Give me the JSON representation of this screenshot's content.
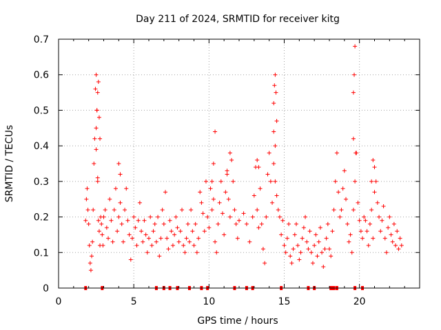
{
  "chart_data": {
    "type": "scatter",
    "title": "Day 211 of 2024, SRMTID for receiver kitg",
    "xlabel": "GPS time / hours",
    "ylabel": "SRMTID / TECUs",
    "xlim": [
      0,
      24
    ],
    "ylim": [
      0,
      0.7
    ],
    "xticks": [
      0,
      5,
      10,
      15,
      20
    ],
    "yticks": [
      0,
      0.1,
      0.2,
      0.3,
      0.4,
      0.5,
      0.6,
      0.7
    ],
    "xtick_labels": [
      "0",
      "5",
      "10",
      "15",
      "20"
    ],
    "ytick_labels": [
      "0",
      "0.1",
      "0.2",
      "0.3",
      "0.4",
      "0.5",
      "0.6",
      "0.7"
    ],
    "grid": true,
    "marker": "+",
    "color": "#ff0000",
    "series": [
      {
        "name": "SRMTID",
        "x": [
          1.8,
          1.85,
          1.9,
          1.95,
          2.0,
          2.05,
          2.1,
          2.15,
          2.2,
          2.25,
          2.3,
          2.35,
          2.4,
          2.45,
          2.5,
          2.55,
          2.6,
          2.65,
          2.7,
          2.75,
          2.8,
          2.85,
          2.9,
          2.95,
          3.0,
          3.1,
          3.2,
          3.3,
          3.4,
          3.5,
          3.6,
          3.7,
          3.8,
          3.9,
          4.0,
          4.1,
          4.2,
          4.3,
          4.4,
          4.5,
          4.6,
          4.7,
          4.8,
          4.9,
          5.0,
          5.1,
          5.2,
          5.3,
          5.4,
          5.5,
          5.6,
          5.7,
          5.8,
          5.9,
          6.0,
          6.1,
          6.2,
          6.3,
          6.4,
          6.5,
          6.6,
          6.7,
          6.8,
          6.9,
          7.0,
          7.1,
          7.2,
          7.3,
          7.4,
          7.5,
          7.6,
          7.7,
          7.8,
          7.9,
          8.0,
          8.1,
          8.2,
          8.3,
          8.4,
          8.5,
          8.6,
          8.7,
          8.8,
          8.9,
          9.0,
          9.1,
          9.2,
          9.3,
          9.4,
          9.5,
          9.6,
          9.7,
          9.8,
          9.9,
          10.0,
          10.1,
          10.2,
          10.3,
          10.4,
          10.5,
          10.6,
          10.7,
          10.8,
          10.9,
          11.0,
          11.1,
          11.2,
          11.3,
          11.4,
          11.5,
          11.6,
          11.7,
          11.8,
          11.9,
          12.0,
          12.3,
          12.5,
          12.7,
          12.9,
          13.0,
          13.1,
          13.2,
          13.3,
          13.4,
          13.5,
          13.6,
          13.7,
          13.8,
          13.9,
          14.0,
          14.1,
          14.2,
          14.3,
          14.4,
          14.5,
          14.6,
          14.7,
          14.8,
          14.9,
          15.0,
          15.1,
          15.2,
          15.3,
          15.4,
          15.5,
          15.6,
          15.7,
          15.8,
          15.9,
          16.0,
          16.1,
          16.2,
          16.3,
          16.4,
          16.5,
          16.6,
          16.7,
          16.8,
          16.9,
          17.0,
          17.1,
          17.2,
          17.3,
          17.4,
          17.5,
          17.6,
          17.7,
          17.8,
          17.9,
          18.0,
          18.1,
          18.2,
          18.3,
          18.4,
          18.5,
          18.6,
          18.7,
          18.8,
          18.9,
          19.0,
          19.1,
          19.2,
          19.3,
          19.4,
          19.5,
          19.6,
          19.7,
          19.8,
          19.9,
          20.0,
          20.1,
          20.2,
          20.3,
          20.4,
          20.5,
          20.6,
          20.7,
          20.8,
          20.9,
          21.0,
          21.1,
          21.2,
          21.3,
          21.4,
          21.5,
          21.6,
          21.7,
          21.8,
          21.9,
          22.0,
          22.1,
          22.2,
          22.3,
          22.4,
          22.5,
          22.6,
          22.7,
          22.8,
          2.5,
          2.55,
          2.6,
          2.65,
          2.7,
          2.75,
          2.5,
          2.6,
          14.3,
          14.35,
          14.4,
          14.45,
          14.5,
          14.3,
          14.4,
          19.6,
          19.65,
          19.7,
          19.6,
          19.75,
          10.2,
          10.3,
          10.4,
          11.2,
          11.4,
          4.0,
          4.1,
          13.2,
          13.3,
          20.8,
          20.9,
          21.0
        ],
        "y": [
          0.19,
          0.25,
          0.28,
          0.22,
          0.18,
          0.12,
          0.07,
          0.05,
          0.09,
          0.13,
          0.22,
          0.35,
          0.42,
          0.56,
          0.6,
          0.5,
          0.3,
          0.19,
          0.16,
          0.12,
          0.2,
          0.18,
          0.15,
          0.12,
          0.2,
          0.22,
          0.17,
          0.14,
          0.25,
          0.19,
          0.13,
          0.22,
          0.28,
          0.16,
          0.2,
          0.24,
          0.18,
          0.13,
          0.22,
          0.28,
          0.19,
          0.15,
          0.08,
          0.14,
          0.2,
          0.17,
          0.12,
          0.19,
          0.24,
          0.16,
          0.13,
          0.19,
          0.15,
          0.1,
          0.14,
          0.2,
          0.12,
          0.16,
          0.18,
          0.13,
          0.2,
          0.09,
          0.14,
          0.22,
          0.18,
          0.27,
          0.14,
          0.11,
          0.19,
          0.16,
          0.12,
          0.15,
          0.2,
          0.17,
          0.13,
          0.16,
          0.22,
          0.12,
          0.1,
          0.14,
          0.18,
          0.13,
          0.22,
          0.16,
          0.12,
          0.18,
          0.1,
          0.14,
          0.27,
          0.24,
          0.21,
          0.16,
          0.3,
          0.2,
          0.17,
          0.28,
          0.22,
          0.25,
          0.13,
          0.1,
          0.18,
          0.24,
          0.3,
          0.21,
          0.15,
          0.27,
          0.33,
          0.25,
          0.2,
          0.36,
          0.3,
          0.22,
          0.18,
          0.14,
          0.19,
          0.21,
          0.18,
          0.13,
          0.2,
          0.26,
          0.34,
          0.22,
          0.17,
          0.28,
          0.18,
          0.11,
          0.07,
          0.2,
          0.32,
          0.38,
          0.3,
          0.24,
          0.35,
          0.3,
          0.26,
          0.22,
          0.2,
          0.15,
          0.19,
          0.12,
          0.1,
          0.14,
          0.18,
          0.09,
          0.07,
          0.11,
          0.15,
          0.18,
          0.12,
          0.08,
          0.1,
          0.14,
          0.17,
          0.2,
          0.13,
          0.11,
          0.16,
          0.1,
          0.07,
          0.12,
          0.15,
          0.09,
          0.13,
          0.17,
          0.1,
          0.06,
          0.11,
          0.14,
          0.18,
          0.11,
          0.09,
          0.16,
          0.22,
          0.3,
          0.38,
          0.27,
          0.2,
          0.22,
          0.28,
          0.33,
          0.25,
          0.18,
          0.13,
          0.15,
          0.1,
          0.22,
          0.3,
          0.38,
          0.24,
          0.19,
          0.16,
          0.14,
          0.2,
          0.19,
          0.16,
          0.12,
          0.18,
          0.22,
          0.14,
          0.27,
          0.3,
          0.24,
          0.2,
          0.16,
          0.19,
          0.23,
          0.14,
          0.1,
          0.17,
          0.2,
          0.15,
          0.13,
          0.18,
          0.12,
          0.16,
          0.11,
          0.14,
          0.12,
          0.45,
          0.5,
          0.55,
          0.58,
          0.48,
          0.42,
          0.39,
          0.31,
          0.52,
          0.57,
          0.6,
          0.55,
          0.47,
          0.44,
          0.4,
          0.55,
          0.6,
          0.68,
          0.42,
          0.38,
          0.3,
          0.35,
          0.44,
          0.32,
          0.38,
          0.35,
          0.32,
          0.36,
          0.34,
          0.3,
          0.36,
          0.34
        ]
      }
    ],
    "gaps": [
      1.8,
      2.9,
      6.5,
      7.0,
      7.4,
      7.9,
      8.7,
      9.5,
      9.9,
      11.7,
      12.5,
      12.9,
      14.8,
      16.6,
      17.0,
      18.1,
      18.2,
      18.3,
      18.5,
      19.7,
      20.2
    ]
  }
}
